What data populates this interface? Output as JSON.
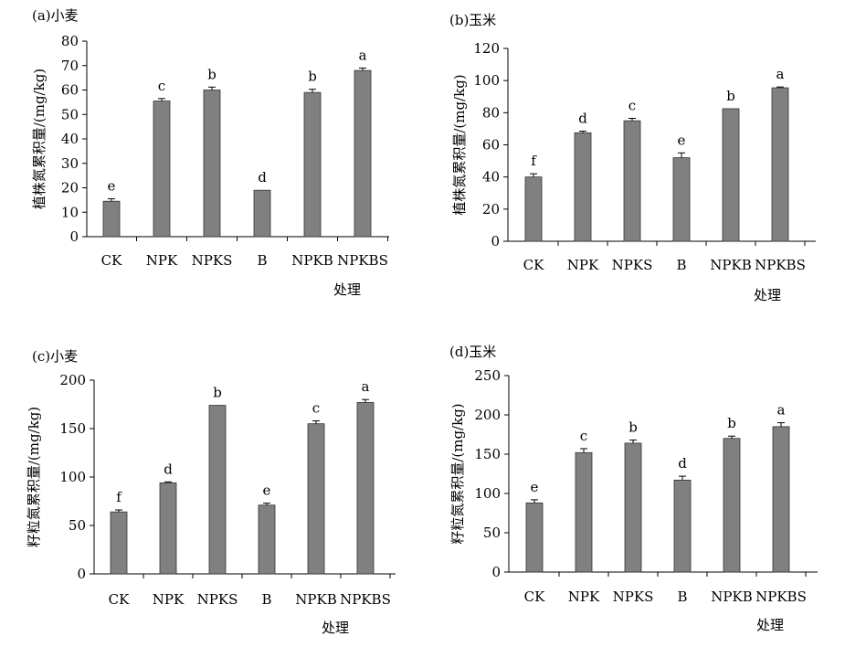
{
  "chart_data": [
    {
      "type": "bar",
      "title": "(a)小麦",
      "ylabel": "植株氮累积量/(mg/kg)",
      "xlabel": "处理",
      "categories": [
        "CK",
        "NPK",
        "NPKS",
        "B",
        "NPKB",
        "NPKBS"
      ],
      "values": [
        14.5,
        55.5,
        60,
        19,
        59,
        68
      ],
      "errors": [
        1,
        1,
        1.2,
        0,
        1.3,
        1
      ],
      "letters": [
        "e",
        "c",
        "b",
        "d",
        "b",
        "a"
      ],
      "yticks": [
        0,
        10,
        20,
        30,
        40,
        50,
        60,
        70,
        80
      ],
      "ylim": [
        0,
        80
      ],
      "grid": false,
      "bar_color": "#808080"
    },
    {
      "type": "bar",
      "title": "(b)玉米",
      "ylabel": "植株氮累积量/(mg/kg)",
      "xlabel": "处理",
      "categories": [
        "CK",
        "NPK",
        "NPKS",
        "B",
        "NPKB",
        "NPKBS"
      ],
      "values": [
        40,
        67.5,
        75,
        52,
        82.5,
        95.5
      ],
      "errors": [
        2,
        1,
        1.5,
        3,
        0,
        0.5
      ],
      "letters": [
        "f",
        "d",
        "c",
        "e",
        "b",
        "a"
      ],
      "yticks": [
        0,
        20,
        40,
        60,
        80,
        100,
        120
      ],
      "ylim": [
        0,
        120
      ],
      "grid": false,
      "bar_color": "#808080"
    },
    {
      "type": "bar",
      "title": "(c)小麦",
      "ylabel": "籽粒氮累积量/(mg/kg)",
      "xlabel": "处理",
      "categories": [
        "CK",
        "NPK",
        "NPKS",
        "B",
        "NPKB",
        "NPKBS"
      ],
      "values": [
        64,
        94,
        174,
        71,
        155,
        177
      ],
      "errors": [
        2,
        1,
        0,
        2,
        3,
        3
      ],
      "letters": [
        "f",
        "d",
        "b",
        "e",
        "c",
        "a"
      ],
      "yticks": [
        0,
        50,
        100,
        150,
        200
      ],
      "ylim": [
        0,
        200
      ],
      "grid": false,
      "bar_color": "#808080"
    },
    {
      "type": "bar",
      "title": "(d)玉米",
      "ylabel": "籽粒氮累积量/(mg/kg)",
      "xlabel": "处理",
      "categories": [
        "CK",
        "NPK",
        "NPKS",
        "B",
        "NPKB",
        "NPKBS"
      ],
      "values": [
        88,
        152,
        164,
        117,
        170,
        185
      ],
      "errors": [
        4,
        5,
        4,
        5,
        3,
        5
      ],
      "letters": [
        "e",
        "c",
        "b",
        "d",
        "b",
        "a"
      ],
      "yticks": [
        0,
        50,
        100,
        150,
        200,
        250
      ],
      "ylim": [
        0,
        250
      ],
      "grid": false,
      "bar_color": "#808080"
    }
  ]
}
